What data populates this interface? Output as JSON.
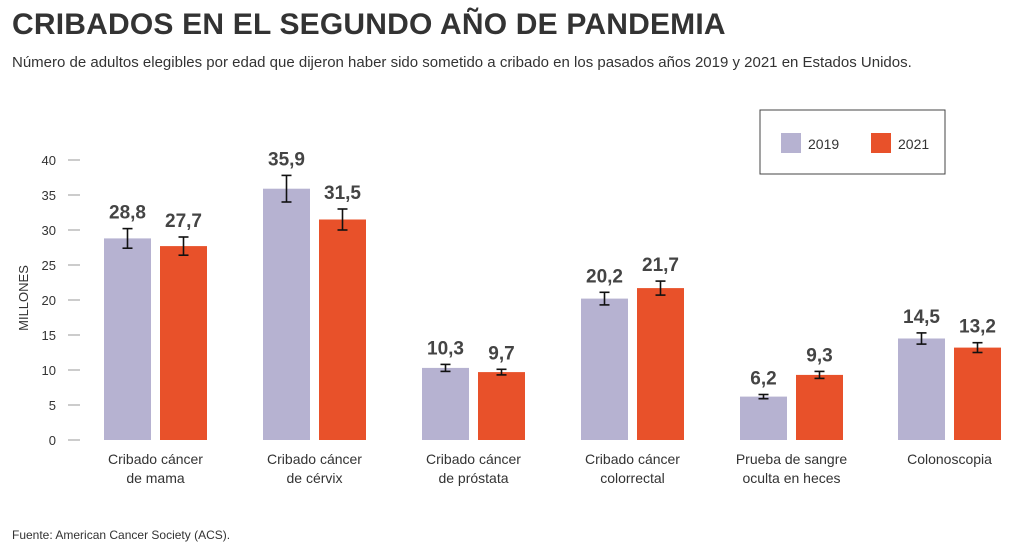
{
  "header": {
    "title": "CRIBADOS EN EL SEGUNDO AÑO DE PANDEMIA",
    "subtitle": "Número de adultos elegibles por edad que dijeron haber sido sometido a cribado en los pasados años 2019 y 2021 en Estados Unidos."
  },
  "footer": {
    "source": "Fuente: American Cancer Society (ACS)."
  },
  "colors": {
    "series_2019": "#b6b2d1",
    "series_2021": "#e8512a",
    "error_bar": "#111111",
    "axis": "#999999"
  },
  "chart_data": {
    "type": "bar",
    "title": "CRIBADOS EN EL SEGUNDO AÑO DE PANDEMIA",
    "ylabel": "MILLONES",
    "ylim": [
      0,
      40
    ],
    "yticks": [
      0,
      5,
      10,
      15,
      20,
      25,
      30,
      35,
      40
    ],
    "grid": false,
    "legend_position": "top-right",
    "categories": [
      [
        "Cribado cáncer",
        "de mama"
      ],
      [
        "Cribado cáncer",
        "de cérvix"
      ],
      [
        "Cribado cáncer",
        "de próstata"
      ],
      [
        "Cribado cáncer",
        "colorrectal"
      ],
      [
        "Prueba de sangre",
        "oculta en heces"
      ],
      [
        "Colonoscopia"
      ]
    ],
    "series": [
      {
        "name": "2019",
        "values": [
          28.8,
          35.9,
          10.3,
          20.2,
          6.2,
          14.5
        ],
        "labels": [
          "28,8",
          "35,9",
          "10,3",
          "20,2",
          "6,2",
          "14,5"
        ],
        "error": [
          1.4,
          1.9,
          0.5,
          0.9,
          0.3,
          0.8
        ]
      },
      {
        "name": "2021",
        "values": [
          27.7,
          31.5,
          9.7,
          21.7,
          9.3,
          13.2
        ],
        "labels": [
          "27,7",
          "31,5",
          "9,7",
          "21,7",
          "9,3",
          "13,2"
        ],
        "error": [
          1.3,
          1.5,
          0.4,
          1.0,
          0.5,
          0.7
        ]
      }
    ]
  }
}
